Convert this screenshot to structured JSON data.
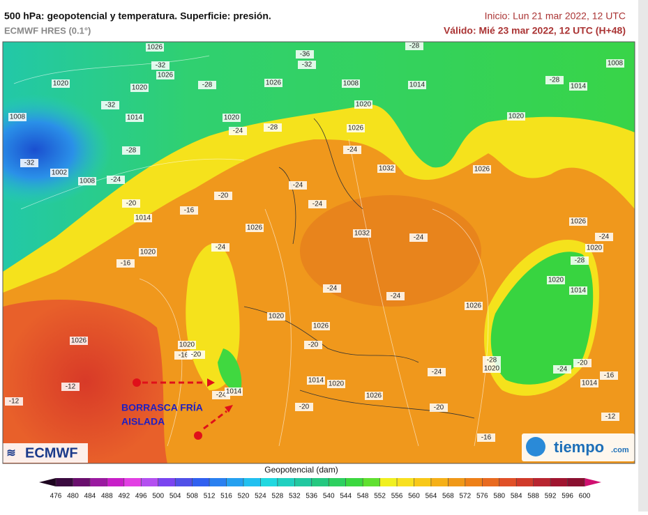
{
  "header": {
    "title": "500 hPa: geopotencial y temperatura. Superficie: presión.",
    "model": "ECMWF HRES (0.1°)",
    "init": "Inicio: Lun 21 mar 2022, 12 UTC",
    "valid": "Válido: Mié 23 mar 2022, 12 UTC (H+48)"
  },
  "map_labels": [
    "1026",
    "-32",
    "1026",
    "1020",
    "1020",
    "-28",
    "1026",
    "1008",
    "1014",
    "-36",
    "-32",
    "-28",
    "1008",
    "-28",
    "1014",
    "1008",
    "-32",
    "1014",
    "1020",
    "-24",
    "-28",
    "1020",
    "1026",
    "-24",
    "1020",
    "-32",
    "1002",
    "1008",
    "-28",
    "-24",
    "-20",
    "1014",
    "-16",
    "-20",
    "1032",
    "1026",
    "-24",
    "-24",
    "1026",
    "1032",
    "-24",
    "-24",
    "1020",
    "-16",
    "-24",
    "-24",
    "1026",
    "1026",
    "1020",
    "-24",
    "-28",
    "1020",
    "1014",
    "1020",
    "1026",
    "-20",
    "1026",
    "1020",
    "-16",
    "-20",
    "-12",
    "-12",
    "-24",
    "1014",
    "1014",
    "1020",
    "-24",
    "1026",
    "-20",
    "-20",
    "1020",
    "-28",
    "-24",
    "-20",
    "1014",
    "-16",
    "-12",
    "-16"
  ],
  "annotation": {
    "line1": "BORRASCA FRÍA",
    "line2": "AISLADA"
  },
  "logos": {
    "left": "ECMWF",
    "right": "tiempo",
    "right_suffix": ".com"
  },
  "colorbar": {
    "title": "Geopotencial (dam)",
    "ticks": [
      476,
      480,
      484,
      488,
      492,
      496,
      500,
      504,
      508,
      512,
      516,
      520,
      524,
      528,
      532,
      536,
      540,
      544,
      548,
      552,
      556,
      560,
      564,
      568,
      572,
      576,
      580,
      584,
      588,
      592,
      596,
      600
    ],
    "colors": [
      "#3a0a3f",
      "#6a0f6e",
      "#9a1aa0",
      "#c81fc8",
      "#e23fe3",
      "#b44ff0",
      "#7a44f0",
      "#5050e8",
      "#3060f0",
      "#2a80f0",
      "#25a0f0",
      "#22c0f0",
      "#20d8e0",
      "#20d0c0",
      "#22c8a0",
      "#25c880",
      "#2ed060",
      "#3cd840",
      "#60e030",
      "#f0f020",
      "#f8e020",
      "#f8c818",
      "#f5b018",
      "#f09818",
      "#ee8018",
      "#e86a20",
      "#e05028",
      "#d03a2a",
      "#b82530",
      "#a01530",
      "#8a1030"
    ],
    "under_color": "#1e0520",
    "over_color": "#d01070"
  }
}
